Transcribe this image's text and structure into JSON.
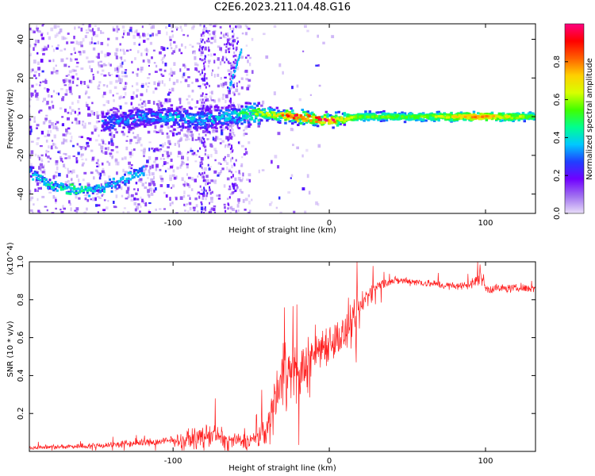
{
  "title": "C2E6.2023.211.04.48.G16",
  "chart_data": [
    {
      "type": "heatmap",
      "xlabel": "Height of straight line (km)",
      "ylabel": "Frequency (Hz)",
      "xlim": [
        -192,
        132
      ],
      "ylim": [
        -50,
        48
      ],
      "xticks": [
        -100,
        0,
        100
      ],
      "yticks": [
        40,
        20,
        0,
        -20,
        -40
      ],
      "colorbar": {
        "label": "Normalized spectral amplitude",
        "range": [
          0,
          1
        ],
        "ticks": [
          "0.0",
          "0.2",
          "0.4",
          "0.6",
          "0.8"
        ],
        "colormap": [
          "#e8ddf8",
          "#a070f0",
          "#7000ff",
          "#2040ff",
          "#00c8ff",
          "#00ff90",
          "#40ff00",
          "#d8ff00",
          "#ffd000",
          "#ff6000",
          "#ff0000",
          "#ff0080"
        ]
      },
      "features": {
        "central_band": [
          {
            "x": -140,
            "y": -3,
            "a": 0.3
          },
          {
            "x": -120,
            "y": 0,
            "a": 0.3
          },
          {
            "x": -100,
            "y": 0,
            "a": 0.35
          },
          {
            "x": -80,
            "y": -2,
            "a": 0.35
          },
          {
            "x": -60,
            "y": 1,
            "a": 0.4
          },
          {
            "x": -45,
            "y": 2,
            "a": 0.55
          },
          {
            "x": -35,
            "y": 1,
            "a": 0.6
          },
          {
            "x": -20,
            "y": 0,
            "a": 0.9
          },
          {
            "x": 0,
            "y": -2,
            "a": 0.85
          },
          {
            "x": 20,
            "y": 0,
            "a": 0.55
          },
          {
            "x": 60,
            "y": 0,
            "a": 0.55
          },
          {
            "x": 95,
            "y": 0,
            "a": 0.8
          },
          {
            "x": 130,
            "y": 0,
            "a": 0.55
          }
        ],
        "lower_arc": [
          {
            "x": -192,
            "y": -28,
            "a": 0.3
          },
          {
            "x": -180,
            "y": -35,
            "a": 0.35
          },
          {
            "x": -165,
            "y": -38,
            "a": 0.4
          },
          {
            "x": -150,
            "y": -38,
            "a": 0.35
          },
          {
            "x": -135,
            "y": -34,
            "a": 0.3
          },
          {
            "x": -120,
            "y": -28,
            "a": 0.3
          }
        ],
        "streak": [
          {
            "x": -62,
            "y": 20,
            "a": 0.3
          },
          {
            "x": -60,
            "y": 25,
            "a": 0.3
          },
          {
            "x": -58,
            "y": 30,
            "a": 0.25
          }
        ]
      }
    },
    {
      "type": "line",
      "xlabel": "Height of straight line (km)",
      "ylabel": "SNR (10 * v/v)",
      "y_multiplier": "(x10^4)",
      "xlim": [
        -192,
        132
      ],
      "ylim": [
        0,
        1.0
      ],
      "xticks": [
        -100,
        0,
        100
      ],
      "yticks": [
        "0.2",
        "0.4",
        "0.6",
        "0.8",
        "1.0"
      ],
      "color": "#ff2020",
      "series": [
        {
          "x": [
            -192,
            -170,
            -150,
            -130,
            -110,
            -95,
            -85,
            -75,
            -65,
            -55,
            -45,
            -38,
            -33,
            -28,
            -23,
            -18,
            -12,
            -6,
            0,
            6,
            12,
            18,
            24,
            30,
            40,
            50,
            60,
            70,
            80,
            90,
            95,
            97,
            100,
            110,
            120,
            132
          ],
          "y": [
            0.02,
            0.025,
            0.03,
            0.04,
            0.05,
            0.06,
            0.07,
            0.09,
            0.06,
            0.05,
            0.07,
            0.15,
            0.35,
            0.45,
            0.4,
            0.42,
            0.5,
            0.55,
            0.58,
            0.6,
            0.62,
            0.72,
            0.82,
            0.87,
            0.9,
            0.9,
            0.89,
            0.88,
            0.87,
            0.88,
            0.9,
            0.95,
            0.86,
            0.86,
            0.86,
            0.86
          ],
          "noise": [
            0.01,
            0.012,
            0.015,
            0.02,
            0.02,
            0.03,
            0.05,
            0.06,
            0.04,
            0.04,
            0.05,
            0.1,
            0.15,
            0.18,
            0.16,
            0.12,
            0.14,
            0.12,
            0.1,
            0.1,
            0.1,
            0.1,
            0.06,
            0.03,
            0.02,
            0.02,
            0.02,
            0.02,
            0.02,
            0.02,
            0.04,
            0.05,
            0.03,
            0.02,
            0.02,
            0.02
          ]
        }
      ]
    }
  ]
}
